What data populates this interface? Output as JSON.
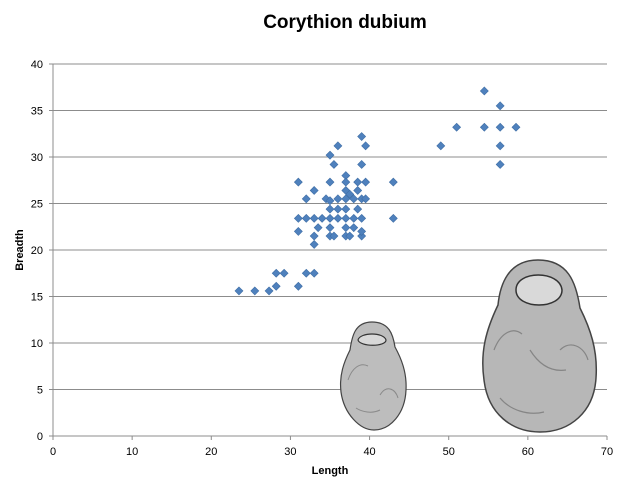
{
  "chart_data": {
    "type": "scatter",
    "title": "Corythion dubium",
    "xlabel": "Length",
    "ylabel": "Breadth",
    "xlim": [
      0,
      70
    ],
    "ylim": [
      0,
      40
    ],
    "xticks": [
      0,
      10,
      20,
      30,
      40,
      50,
      60,
      70
    ],
    "yticks": [
      0,
      5,
      10,
      15,
      20,
      25,
      30,
      35,
      40
    ],
    "grid": "horizontal",
    "legend": "none",
    "marker": "diamond",
    "colors": {
      "marker": "#4f81bd",
      "grid": "#8c8c8c"
    },
    "series": [
      {
        "points": [
          [
            23.5,
            15.6
          ],
          [
            25.5,
            15.6
          ],
          [
            27.3,
            15.6
          ],
          [
            28.2,
            16.1
          ],
          [
            28.2,
            17.5
          ],
          [
            29.2,
            17.5
          ],
          [
            31.0,
            16.1
          ],
          [
            32.0,
            17.5
          ],
          [
            33.0,
            17.5
          ],
          [
            33.0,
            20.6
          ],
          [
            33.0,
            21.5
          ],
          [
            33.5,
            22.4
          ],
          [
            31.0,
            22.0
          ],
          [
            31.0,
            23.4
          ],
          [
            32.0,
            23.4
          ],
          [
            33.0,
            23.4
          ],
          [
            34.0,
            23.4
          ],
          [
            32.0,
            25.5
          ],
          [
            33.0,
            26.4
          ],
          [
            31.0,
            27.3
          ],
          [
            34.5,
            25.5
          ],
          [
            35.0,
            25.3
          ],
          [
            35.0,
            24.4
          ],
          [
            35.0,
            23.4
          ],
          [
            35.0,
            22.4
          ],
          [
            35.0,
            21.5
          ],
          [
            35.5,
            21.5
          ],
          [
            36.0,
            23.4
          ],
          [
            36.0,
            25.5
          ],
          [
            36.0,
            24.4
          ],
          [
            35.0,
            27.3
          ],
          [
            35.5,
            29.2
          ],
          [
            35.0,
            30.2
          ],
          [
            36.0,
            31.2
          ],
          [
            37.0,
            28.0
          ],
          [
            37.0,
            27.3
          ],
          [
            37.0,
            26.4
          ],
          [
            37.0,
            25.5
          ],
          [
            37.0,
            24.4
          ],
          [
            37.0,
            23.4
          ],
          [
            37.0,
            22.4
          ],
          [
            37.0,
            21.5
          ],
          [
            37.5,
            21.5
          ],
          [
            37.5,
            26.0
          ],
          [
            38.0,
            25.5
          ],
          [
            38.0,
            23.4
          ],
          [
            38.0,
            22.4
          ],
          [
            38.5,
            24.4
          ],
          [
            38.5,
            27.3
          ],
          [
            39.0,
            29.2
          ],
          [
            39.0,
            32.2
          ],
          [
            39.5,
            31.2
          ],
          [
            39.0,
            25.5
          ],
          [
            39.0,
            23.4
          ],
          [
            39.0,
            21.5
          ],
          [
            39.0,
            22.0
          ],
          [
            39.5,
            25.5
          ],
          [
            39.5,
            27.3
          ],
          [
            38.5,
            26.4
          ],
          [
            43.0,
            27.3
          ],
          [
            43.0,
            23.4
          ],
          [
            49.0,
            31.2
          ],
          [
            51.0,
            33.2
          ],
          [
            54.5,
            33.2
          ],
          [
            54.5,
            37.1
          ],
          [
            56.5,
            35.5
          ],
          [
            56.5,
            33.2
          ],
          [
            56.5,
            31.2
          ],
          [
            56.5,
            29.2
          ],
          [
            58.5,
            33.2
          ]
        ]
      }
    ]
  }
}
